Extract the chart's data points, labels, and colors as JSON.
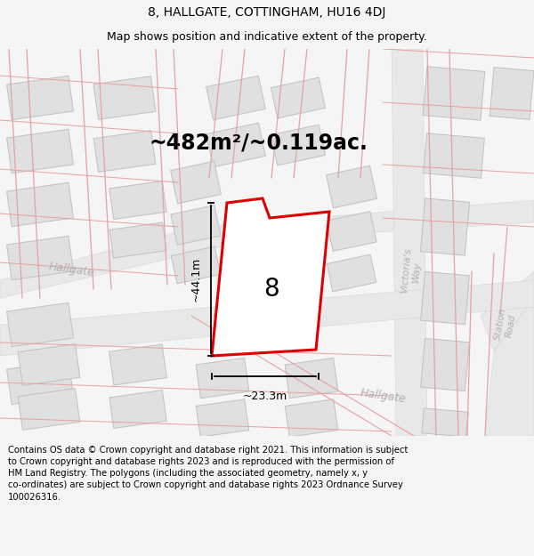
{
  "title": "8, HALLGATE, COTTINGHAM, HU16 4DJ",
  "subtitle": "Map shows position and indicative extent of the property.",
  "area_text": "~482m²/~0.119ac.",
  "number_label": "8",
  "dim_height": "~44.1m",
  "dim_width": "~23.3m",
  "footer": "Contains OS data © Crown copyright and database right 2021. This information is subject to Crown copyright and database rights 2023 and is reproduced with the permission of HM Land Registry. The polygons (including the associated geometry, namely x, y co-ordinates) are subject to Crown copyright and database rights 2023 Ordnance Survey 100026316.",
  "bg_color": "#f5f5f5",
  "map_bg": "#ffffff",
  "road_color_light": "#e8a0a0",
  "road_color_gray": "#c8c8c8",
  "building_face": "#e0e0e0",
  "building_edge": "#c0c0c0",
  "property_color": "#dd0000",
  "title_fontsize": 10,
  "subtitle_fontsize": 9,
  "area_fontsize": 17,
  "footer_fontsize": 7.2,
  "label_color": "#b0b0b0",
  "street_fontsize": 9,
  "dim_fontsize": 9
}
